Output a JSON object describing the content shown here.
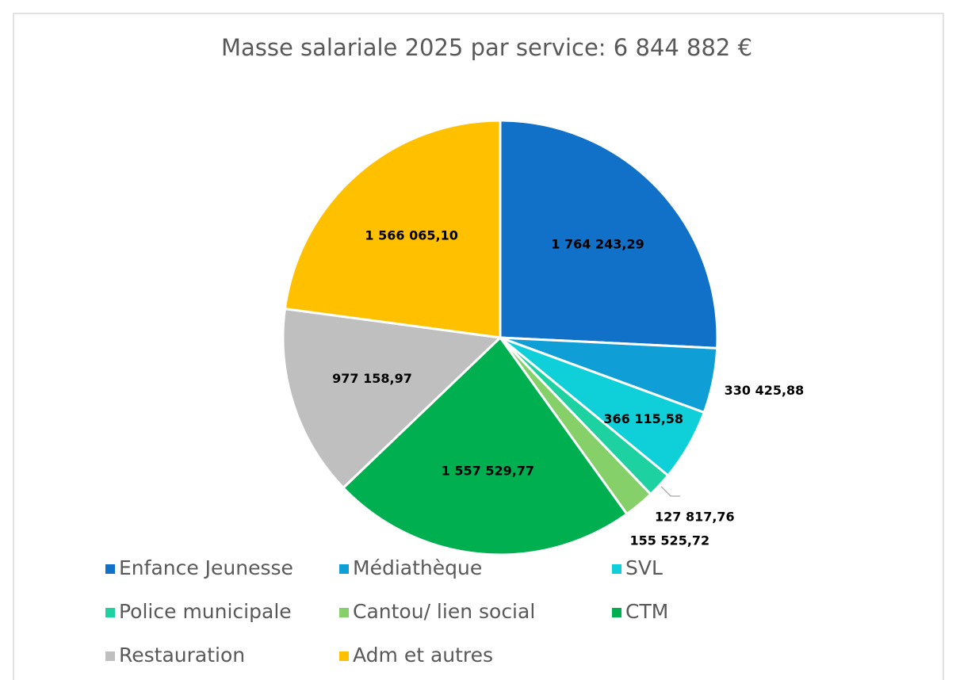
{
  "chart_data": {
    "type": "pie",
    "title": "Masse salariale 2025 par service: 6 844 882 €",
    "categories": [
      "Enfance Jeunesse",
      "Médiathèque",
      "SVL",
      "Police municipale",
      "Cantou/ lien social",
      "CTM",
      "Restauration",
      "Adm et autres"
    ],
    "values": [
      1764243.29,
      330425.88,
      366115.58,
      127817.76,
      155525.72,
      1557529.77,
      977158.97,
      1566065.1
    ],
    "value_labels": [
      "1 764 243,29",
      "330 425,88",
      "366 115,58",
      "127 817,76",
      "155 525,72",
      "1 557 529,77",
      "977 158,97",
      "1 566 065,10"
    ],
    "colors": [
      "#1170c8",
      "#0f9ed5",
      "#0fd0d9",
      "#1ed1a0",
      "#86d06a",
      "#00b050",
      "#bfbfbf",
      "#ffc000"
    ],
    "legend": "bottom"
  }
}
